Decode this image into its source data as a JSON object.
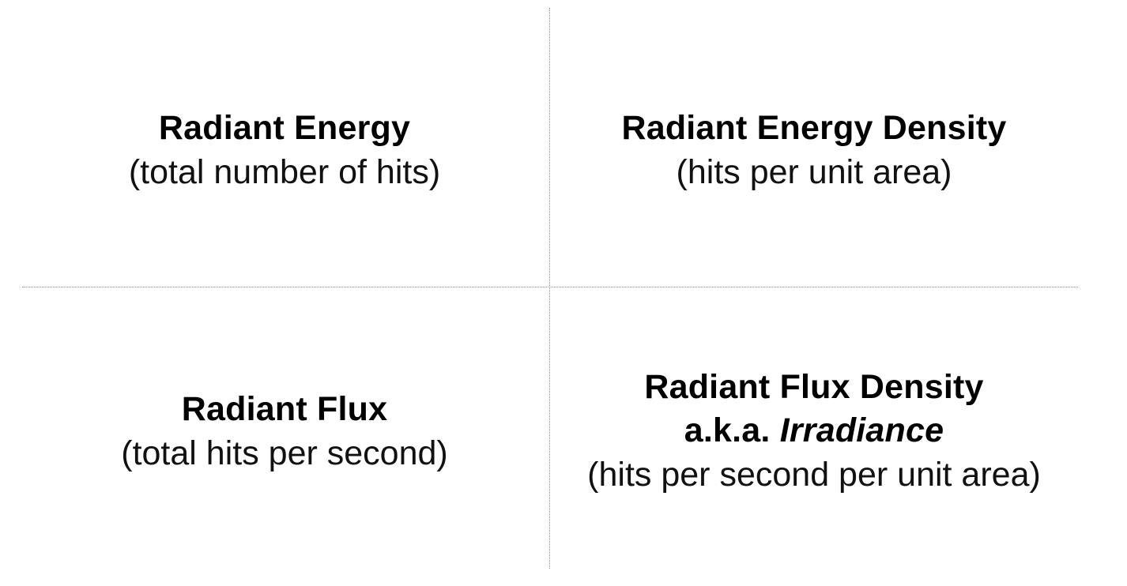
{
  "quadrants": {
    "top_left": {
      "title": "Radiant Energy",
      "description": "(total number of hits)"
    },
    "top_right": {
      "title": "Radiant Energy Density",
      "description": "(hits per unit area)"
    },
    "bottom_left": {
      "title": "Radiant Flux",
      "description": "(total hits per second)"
    },
    "bottom_right": {
      "title": "Radiant Flux Density",
      "aka_prefix": "a.k.a.",
      "aka_term": "Irradiance",
      "description": "(hits per second per unit area)"
    }
  },
  "colors": {
    "text": "#000000",
    "divider": "#888888",
    "background": "#ffffff"
  }
}
